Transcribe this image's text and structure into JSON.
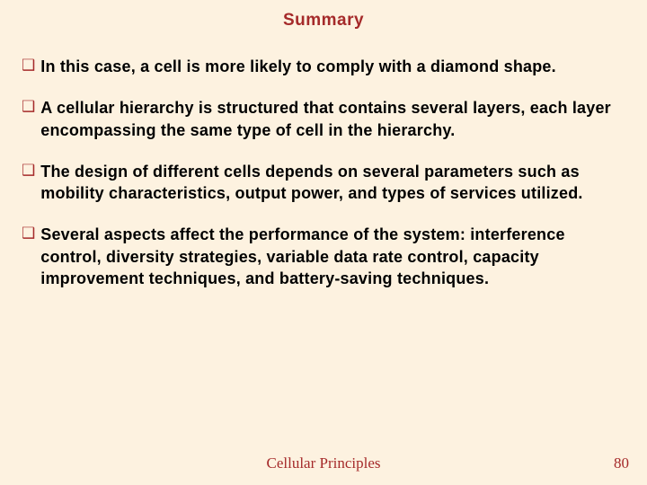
{
  "slide": {
    "title": "Summary",
    "bullets": [
      "In this case, a cell is more likely to comply with a diamond shape.",
      "A cellular hierarchy is structured that contains several layers, each layer encompassing the same type of cell in the hierarchy.",
      "The design of different cells depends on several parameters such as mobility characteristics, output power, and types of services utilized.",
      "Several aspects affect the performance of the system: interference control, diversity strategies, variable data rate control, capacity improvement techniques, and battery-saving techniques."
    ],
    "footer": "Cellular Principles",
    "page_number": "80"
  },
  "colors": {
    "background": "#fdf2e0",
    "accent": "#a52a2a",
    "text": "#000000"
  },
  "typography": {
    "title_fontsize": 19,
    "bullet_fontsize": 18,
    "footer_fontsize": 17
  }
}
